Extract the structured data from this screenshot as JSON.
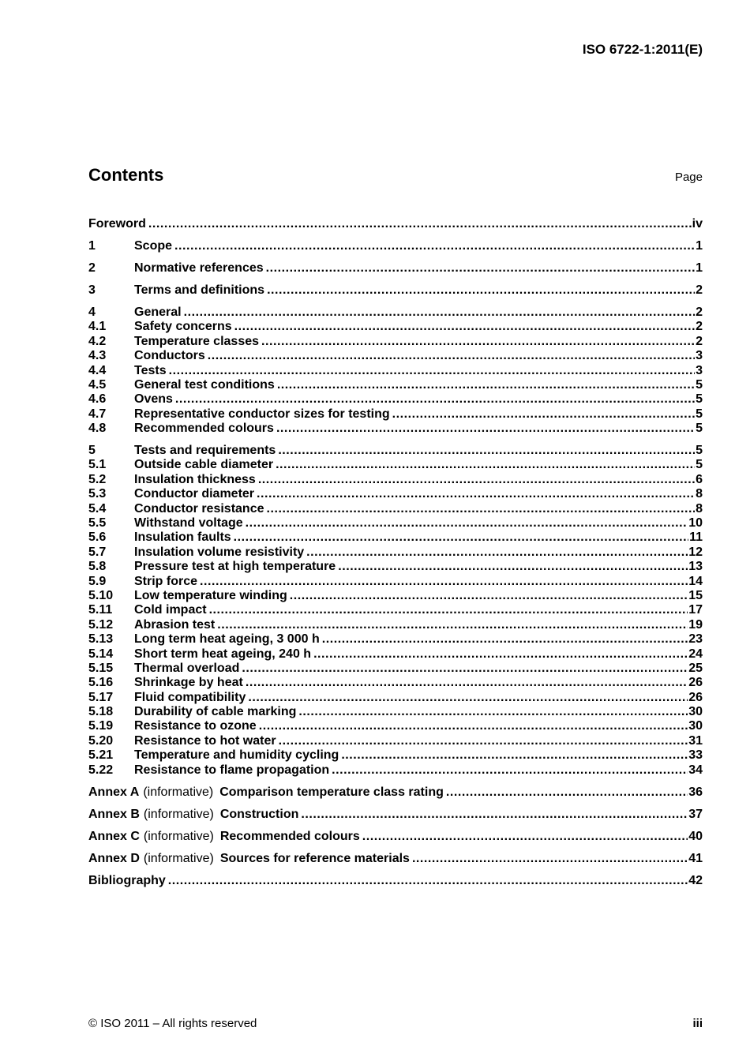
{
  "header": {
    "doc_ref": "ISO 6722-1:2011(E)"
  },
  "toc": {
    "heading": "Contents",
    "page_column_label": "Page",
    "entries": [
      {
        "type": "plain",
        "level": 1,
        "title": "Foreword",
        "page": "iv"
      },
      {
        "type": "numbered",
        "level": 1,
        "num": "1",
        "title": "Scope",
        "page": "1"
      },
      {
        "type": "numbered",
        "level": 1,
        "num": "2",
        "title": "Normative references",
        "page": "1"
      },
      {
        "type": "numbered",
        "level": 1,
        "num": "3",
        "title": "Terms and definitions",
        "page": "2"
      },
      {
        "type": "numbered",
        "level": 1,
        "num": "4",
        "title": "General",
        "page": "2"
      },
      {
        "type": "numbered",
        "level": 2,
        "num": "4.1",
        "title": "Safety concerns",
        "page": "2"
      },
      {
        "type": "numbered",
        "level": 2,
        "num": "4.2",
        "title": "Temperature classes",
        "page": "2"
      },
      {
        "type": "numbered",
        "level": 2,
        "num": "4.3",
        "title": "Conductors",
        "page": "3"
      },
      {
        "type": "numbered",
        "level": 2,
        "num": "4.4",
        "title": "Tests",
        "page": "3"
      },
      {
        "type": "numbered",
        "level": 2,
        "num": "4.5",
        "title": "General test conditions",
        "page": "5"
      },
      {
        "type": "numbered",
        "level": 2,
        "num": "4.6",
        "title": "Ovens",
        "page": "5"
      },
      {
        "type": "numbered",
        "level": 2,
        "num": "4.7",
        "title": "Representative conductor sizes for testing",
        "page": "5"
      },
      {
        "type": "numbered",
        "level": 2,
        "num": "4.8",
        "title": "Recommended colours",
        "page": "5"
      },
      {
        "type": "numbered",
        "level": 1,
        "num": "5",
        "title": "Tests and requirements",
        "page": "5"
      },
      {
        "type": "numbered",
        "level": 2,
        "num": "5.1",
        "title": "Outside cable diameter",
        "page": "5"
      },
      {
        "type": "numbered",
        "level": 2,
        "num": "5.2",
        "title": "Insulation thickness",
        "page": "6"
      },
      {
        "type": "numbered",
        "level": 2,
        "num": "5.3",
        "title": "Conductor diameter",
        "page": "8"
      },
      {
        "type": "numbered",
        "level": 2,
        "num": "5.4",
        "title": "Conductor resistance",
        "page": "8"
      },
      {
        "type": "numbered",
        "level": 2,
        "num": "5.5",
        "title": "Withstand voltage",
        "page": "10"
      },
      {
        "type": "numbered",
        "level": 2,
        "num": "5.6",
        "title": "Insulation faults",
        "page": "11"
      },
      {
        "type": "numbered",
        "level": 2,
        "num": "5.7",
        "title": "Insulation volume resistivity",
        "page": "12"
      },
      {
        "type": "numbered",
        "level": 2,
        "num": "5.8",
        "title": "Pressure test at high temperature",
        "page": "13"
      },
      {
        "type": "numbered",
        "level": 2,
        "num": "5.9",
        "title": "Strip force",
        "page": "14"
      },
      {
        "type": "numbered",
        "level": 2,
        "num": "5.10",
        "title": "Low temperature winding",
        "page": "15"
      },
      {
        "type": "numbered",
        "level": 2,
        "num": "5.11",
        "title": "Cold impact",
        "page": "17"
      },
      {
        "type": "numbered",
        "level": 2,
        "num": "5.12",
        "title": "Abrasion test",
        "page": "19"
      },
      {
        "type": "numbered",
        "level": 2,
        "num": "5.13",
        "title": "Long term heat ageing, 3 000 h",
        "page": "23"
      },
      {
        "type": "numbered",
        "level": 2,
        "num": "5.14",
        "title": "Short term heat ageing, 240 h",
        "page": "24"
      },
      {
        "type": "numbered",
        "level": 2,
        "num": "5.15",
        "title": "Thermal overload",
        "page": "25"
      },
      {
        "type": "numbered",
        "level": 2,
        "num": "5.16",
        "title": "Shrinkage by heat",
        "page": "26"
      },
      {
        "type": "numbered",
        "level": 2,
        "num": "5.17",
        "title": "Fluid compatibility",
        "page": "26"
      },
      {
        "type": "numbered",
        "level": 2,
        "num": "5.18",
        "title": "Durability of cable marking",
        "page": "30"
      },
      {
        "type": "numbered",
        "level": 2,
        "num": "5.19",
        "title": "Resistance to ozone",
        "page": "30"
      },
      {
        "type": "numbered",
        "level": 2,
        "num": "5.20",
        "title": "Resistance to hot water",
        "page": "31"
      },
      {
        "type": "numbered",
        "level": 2,
        "num": "5.21",
        "title": "Temperature and humidity cycling",
        "page": "33"
      },
      {
        "type": "numbered",
        "level": 2,
        "num": "5.22",
        "title": "Resistance to flame propagation",
        "page": "34"
      },
      {
        "type": "annex",
        "level": 1,
        "label": "Annex A",
        "qualifier": "(informative)",
        "title": "Comparison temperature class rating",
        "page": "36"
      },
      {
        "type": "annex",
        "level": 1,
        "label": "Annex B",
        "qualifier": "(informative)",
        "title": "Construction",
        "page": "37"
      },
      {
        "type": "annex",
        "level": 1,
        "label": "Annex C",
        "qualifier": "(informative)",
        "title": "Recommended colours",
        "page": "40"
      },
      {
        "type": "annex",
        "level": 1,
        "label": "Annex D",
        "qualifier": "(informative)",
        "title": "Sources for reference materials",
        "page": "41"
      },
      {
        "type": "plain",
        "level": 1,
        "title": "Bibliography",
        "page": "42"
      }
    ]
  },
  "footer": {
    "copyright": "© ISO 2011 – All rights reserved",
    "page_number": "iii"
  }
}
